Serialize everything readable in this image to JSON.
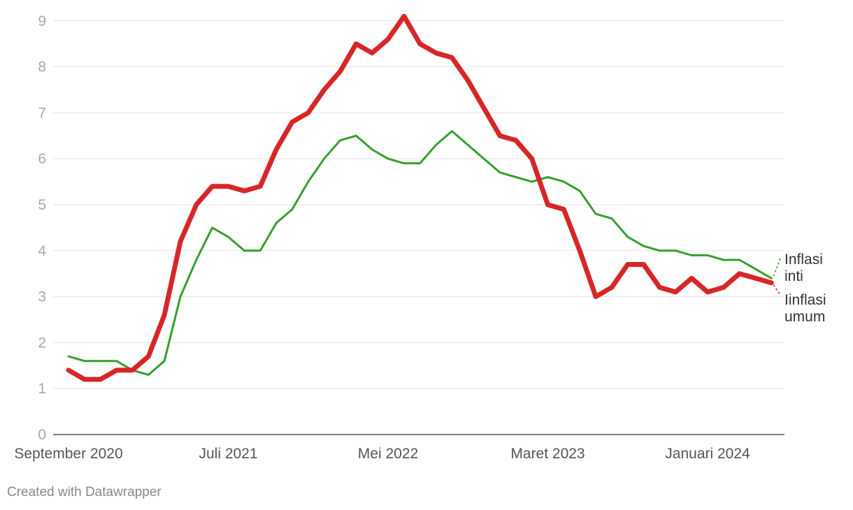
{
  "chart_data": {
    "type": "line",
    "title": "",
    "xlabel": "",
    "ylabel": "",
    "ylim": [
      0,
      9
    ],
    "grid": true,
    "x_start": "September 2020",
    "x_end": "Februari 2024",
    "yticks": [
      "0",
      "1",
      "2",
      "3",
      "4",
      "5",
      "6",
      "7",
      "8",
      "9"
    ],
    "xticks": [
      {
        "label": "September 2020",
        "month": "2020-09"
      },
      {
        "label": "Juli 2021",
        "month": "2021-07"
      },
      {
        "label": "Mei 2022",
        "month": "2022-05"
      },
      {
        "label": "Maret 2023",
        "month": "2023-03"
      },
      {
        "label": "Januari 2024",
        "month": "2024-01"
      }
    ],
    "series": [
      {
        "name": "Inflasi inti",
        "label_lines": [
          "Inflasi",
          "inti"
        ],
        "color": "#33a02c",
        "values": [
          1.7,
          1.6,
          1.6,
          1.6,
          1.4,
          1.3,
          1.6,
          3.0,
          3.8,
          4.5,
          4.3,
          4.0,
          4.0,
          4.6,
          4.9,
          5.5,
          6.0,
          6.4,
          6.5,
          6.2,
          6.0,
          5.9,
          5.9,
          6.3,
          6.6,
          6.3,
          6.0,
          5.7,
          5.6,
          5.5,
          5.6,
          5.5,
          5.3,
          4.8,
          4.7,
          4.3,
          4.1,
          4.0,
          4.0,
          3.9,
          3.9,
          3.8,
          3.8,
          3.6,
          3.4
        ]
      },
      {
        "name": "Iinflasi umum",
        "label_lines": [
          "Iinflasi",
          "umum"
        ],
        "color": "#d62728",
        "values": [
          1.4,
          1.2,
          1.2,
          1.4,
          1.4,
          1.7,
          2.6,
          4.2,
          5.0,
          5.4,
          5.4,
          5.3,
          5.4,
          6.2,
          6.8,
          7.0,
          7.5,
          7.9,
          8.5,
          8.3,
          8.6,
          9.1,
          8.5,
          8.3,
          8.2,
          7.7,
          7.1,
          6.5,
          6.4,
          6.0,
          5.0,
          4.9,
          4.0,
          3.0,
          3.2,
          3.7,
          3.7,
          3.2,
          3.1,
          3.4,
          3.1,
          3.2,
          3.5,
          3.4,
          3.3
        ]
      }
    ]
  },
  "footer": {
    "credit": "Created with Datawrapper"
  }
}
